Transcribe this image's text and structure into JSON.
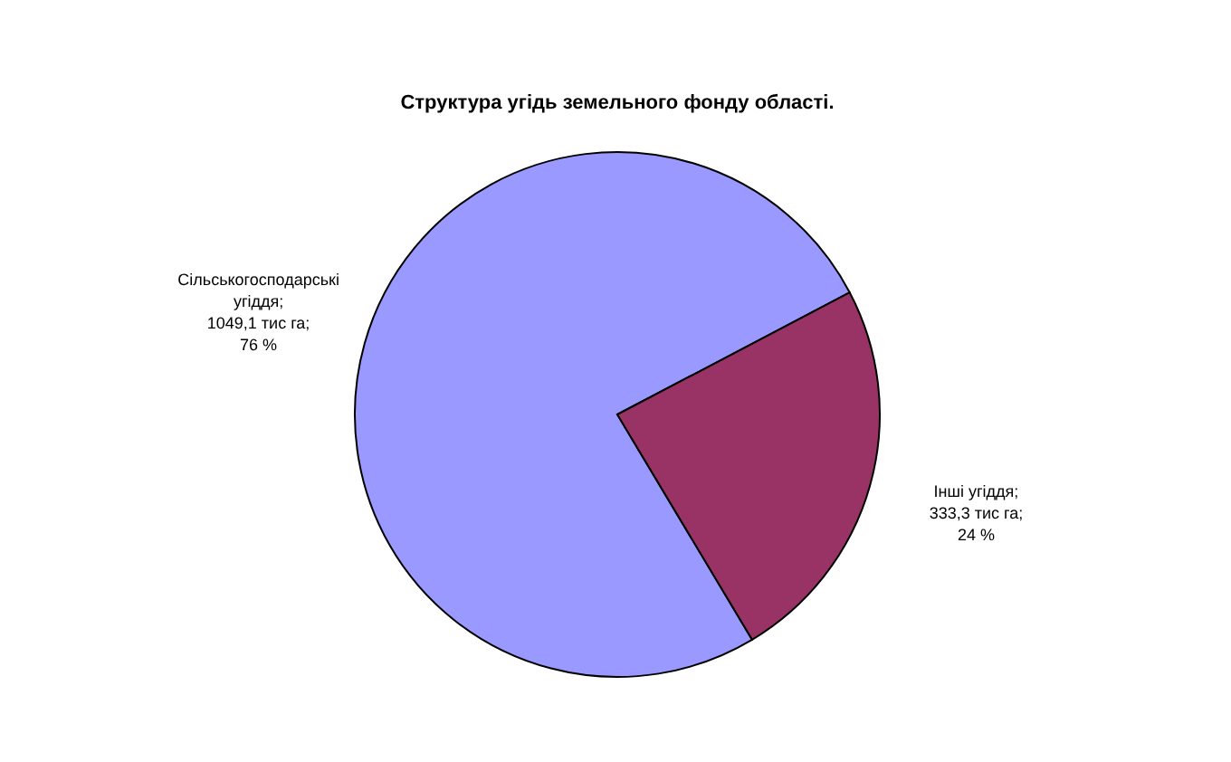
{
  "chart_data": {
    "type": "pie",
    "title": "Структура угідь земельного фонду області.",
    "categories": [
      "Сільськогосподарські угіддя",
      "Інші угіддя"
    ],
    "values": [
      1049.1,
      333.3
    ],
    "colors": [
      "#9999ff",
      "#993366"
    ],
    "value_labels": [
      ";\n1049,1 тис га;\n76 %",
      ";\n333,3 тис га;\n24 %"
    ]
  }
}
